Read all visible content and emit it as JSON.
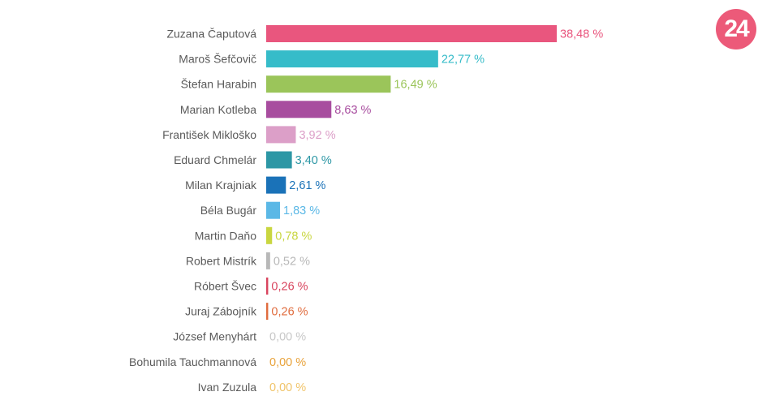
{
  "logo": {
    "text": "24"
  },
  "chart_data": {
    "type": "bar",
    "orientation": "horizontal",
    "categories": [
      "Zuzana Čaputová",
      "Maroš Šefčovič",
      "Štefan Harabin",
      "Marian Kotleba",
      "František Mikloško",
      "Eduard Chmelár",
      "Milan Krajniak",
      "Béla Bugár",
      "Martin Daňo",
      "Robert Mistrík",
      "Róbert Švec",
      "Juraj Zábojník",
      "József Menyhárt",
      "Bohumila Tauchmannová",
      "Ivan Zuzula"
    ],
    "values": [
      38.48,
      22.77,
      16.49,
      8.63,
      3.92,
      3.4,
      2.61,
      1.83,
      0.78,
      0.52,
      0.26,
      0.26,
      0.0,
      0.0,
      0.0
    ],
    "value_labels": [
      "38,48 %",
      "22,77 %",
      "16,49 %",
      "8,63 %",
      "3,92 %",
      "3,40 %",
      "2,61 %",
      "1,83 %",
      "0,78 %",
      "0,52 %",
      "0,26 %",
      "0,26 %",
      "0,00 %",
      "0,00 %",
      "0,00 %"
    ],
    "colors": [
      "#e9567e",
      "#36bcc9",
      "#9bc55a",
      "#a84d9f",
      "#dc9fc8",
      "#2d97a5",
      "#1a72b8",
      "#5bb8e6",
      "#c9d640",
      "#b8b8b8",
      "#d9445e",
      "#e06c3e",
      "#c8c8c8",
      "#e8a23a",
      "#f0c46a"
    ],
    "title": "",
    "xlabel": "",
    "ylabel": "",
    "xlim": [
      0,
      38.48
    ],
    "grid": false,
    "legend": "none"
  }
}
